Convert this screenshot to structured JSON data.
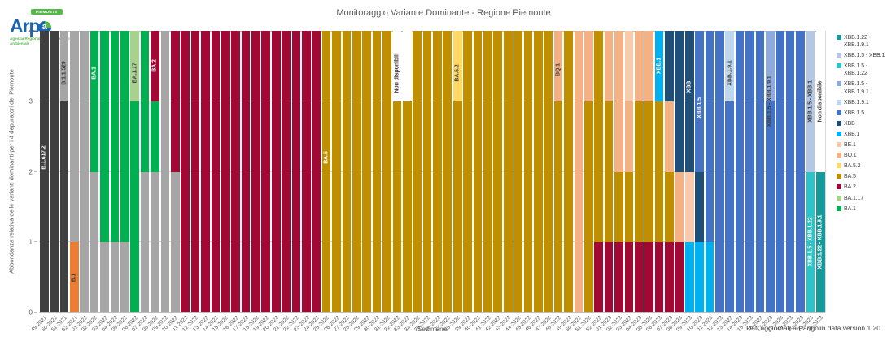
{
  "header": {
    "title": "Monitoraggio Variante Dominante - Regione Piemonte",
    "logo": {
      "badge": "PIEMONTE",
      "name": "Arp",
      "globe_letter": "a",
      "subtitle": "Agenzia Regionale per la Protezione Ambientale"
    }
  },
  "y_axis": {
    "title": "Abbondanza relativa delle varianti dominanti per i 4 depuratori del Piemonte",
    "ticks": [
      0,
      1,
      2,
      3,
      4
    ],
    "max": 4
  },
  "x_axis": {
    "title": "Settimane"
  },
  "footer": {
    "note": "Dati aggiornati a Pangolin data version 1.20"
  },
  "variant_colors": {
    "B.1.617.2": "#3F3F3F",
    "B.1.1.529": "#A6A6A6",
    "B.1": "#ED7D31",
    "BA.1": "#00B050",
    "BA.1.17": "#A9D18E",
    "BA.2": "#A20834",
    "BA.5": "#BF8F00",
    "BA.5.2": "#FFD966",
    "BQ.1": "#F4B183",
    "BE.1": "#F8CBAD",
    "XBB.1": "#00B0F0",
    "XBB": "#1F4E79",
    "XBB.1.5": "#4472C4",
    "XBB.1.9.1": "#BDD7EE",
    "XBB.1.5 - XBB.1.9.1": "#8FAADC",
    "XBB.1.5 - XBB.1.22": "#2BC4C8",
    "XBB.1.5 - XBB.1": "#B4C7E7",
    "XBB.1.22 - XBB.1.9.1": "#17989A",
    "Non disponibile": "#FFFFFF"
  },
  "legend": [
    {
      "label": "XBB.1.22 - XBB.1.9.1",
      "color": "#17989A"
    },
    {
      "label": "XBB.1.5 - XBB.1",
      "color": "#B4C7E7"
    },
    {
      "label": "XBB.1.5 - XBB.1.22",
      "color": "#2BC4C8"
    },
    {
      "label": "XBB.1.5 - XBB.1.9.1",
      "color": "#8FAADC"
    },
    {
      "label": "XBB.1.9.1",
      "color": "#BDD7EE"
    },
    {
      "label": "XBB.1.5",
      "color": "#4472C4"
    },
    {
      "label": "XBB",
      "color": "#1F4E79"
    },
    {
      "label": "XBB.1",
      "color": "#00B0F0"
    },
    {
      "label": "BE.1",
      "color": "#F8CBAD"
    },
    {
      "label": "BQ.1",
      "color": "#F4B183"
    },
    {
      "label": "BA.5.2",
      "color": "#FFD966"
    },
    {
      "label": "BA.5",
      "color": "#BF8F00"
    },
    {
      "label": "BA.2",
      "color": "#A20834"
    },
    {
      "label": "BA.1.17",
      "color": "#A9D18E"
    },
    {
      "label": "BA.1",
      "color": "#00B050"
    }
  ],
  "chart_data": {
    "type": "bar",
    "stacked": true,
    "title": "Monitoraggio Variante Dominante - Regione Piemonte",
    "xlabel": "Settimane",
    "ylabel": "Abbondanza relativa delle varianti dominanti per i 4 depuratori del Piemonte",
    "ylim": [
      0,
      4
    ],
    "grid": true,
    "legend_position": "right",
    "bars": [
      {
        "w": "49-2021",
        "s": [
          [
            "B.1.617.2",
            4
          ]
        ],
        "a": [
          {
            "t": "B.1.617.2",
            "at": 2.2,
            "c": "#FFFFFF"
          }
        ]
      },
      {
        "w": "50-2021",
        "s": [
          [
            "B.1.617.2",
            4
          ]
        ]
      },
      {
        "w": "51-2021",
        "s": [
          [
            "B.1.617.2",
            3
          ],
          [
            "B.1.1.529",
            1
          ]
        ],
        "a": [
          {
            "t": "B.1.1.529",
            "at": 3.4,
            "c": "#404040"
          }
        ]
      },
      {
        "w": "52-2021",
        "s": [
          [
            "B.1",
            1
          ],
          [
            "B.1.1.529",
            3
          ]
        ],
        "a": [
          {
            "t": "B.1",
            "at": 0.5,
            "c": "#404040"
          }
        ]
      },
      {
        "w": "01-2022",
        "s": [
          [
            "B.1.1.529",
            4
          ]
        ]
      },
      {
        "w": "02-2022",
        "s": [
          [
            "B.1.1.529",
            2
          ],
          [
            "BA.1",
            2
          ]
        ],
        "a": [
          {
            "t": "BA.1",
            "at": 3.4,
            "c": "#FFFFFF"
          }
        ]
      },
      {
        "w": "03-2022",
        "s": [
          [
            "B.1.1.529",
            1
          ],
          [
            "BA.1",
            3
          ]
        ]
      },
      {
        "w": "04-2022",
        "s": [
          [
            "B.1.1.529",
            1
          ],
          [
            "BA.1",
            3
          ]
        ]
      },
      {
        "w": "05-2022",
        "s": [
          [
            "B.1.1.529",
            1
          ],
          [
            "BA.1",
            3
          ]
        ]
      },
      {
        "w": "06-2022",
        "s": [
          [
            "BA.1",
            3
          ],
          [
            "BA.1.17",
            1
          ]
        ],
        "a": [
          {
            "t": "BA.1.17",
            "at": 3.4,
            "c": "#404040"
          }
        ]
      },
      {
        "w": "07-2022",
        "s": [
          [
            "B.1.1.529",
            2
          ],
          [
            "BA.1",
            2
          ]
        ]
      },
      {
        "w": "08-2022",
        "s": [
          [
            "B.1.1.529",
            2
          ],
          [
            "BA.1",
            1
          ],
          [
            "BA.2",
            1
          ]
        ],
        "a": [
          {
            "t": "BA.2",
            "at": 3.5,
            "c": "#FFFFFF"
          }
        ]
      },
      {
        "w": "09-2022",
        "s": [
          [
            "B.1.1.529",
            4
          ]
        ]
      },
      {
        "w": "10-2022",
        "s": [
          [
            "B.1.1.529",
            2
          ],
          [
            "BA.2",
            2
          ]
        ]
      },
      {
        "w": "11-2022",
        "s": [
          [
            "BA.2",
            4
          ]
        ]
      },
      {
        "w": "12-2022",
        "s": [
          [
            "BA.2",
            4
          ]
        ]
      },
      {
        "w": "13-2022",
        "s": [
          [
            "BA.2",
            4
          ]
        ]
      },
      {
        "w": "14-2022",
        "s": [
          [
            "BA.2",
            4
          ]
        ]
      },
      {
        "w": "15-2022",
        "s": [
          [
            "BA.2",
            4
          ]
        ]
      },
      {
        "w": "16-2022",
        "s": [
          [
            "BA.2",
            4
          ]
        ]
      },
      {
        "w": "17-2022",
        "s": [
          [
            "BA.2",
            4
          ]
        ]
      },
      {
        "w": "18-2022",
        "s": [
          [
            "BA.2",
            4
          ]
        ]
      },
      {
        "w": "19-2022",
        "s": [
          [
            "BA.2",
            4
          ]
        ]
      },
      {
        "w": "20-2022",
        "s": [
          [
            "BA.2",
            4
          ]
        ]
      },
      {
        "w": "21-2022",
        "s": [
          [
            "BA.2",
            4
          ]
        ]
      },
      {
        "w": "22-2022",
        "s": [
          [
            "BA.2",
            4
          ]
        ]
      },
      {
        "w": "23-2022",
        "s": [
          [
            "BA.2",
            4
          ]
        ]
      },
      {
        "w": "24-2022",
        "s": [
          [
            "BA.2",
            4
          ]
        ]
      },
      {
        "w": "25-2022",
        "s": [
          [
            "BA.5",
            4
          ]
        ],
        "a": [
          {
            "t": "BA.5",
            "at": 2.2,
            "c": "#FFFFFF"
          }
        ]
      },
      {
        "w": "26-2022",
        "s": [
          [
            "BA.5",
            4
          ]
        ]
      },
      {
        "w": "27-2022",
        "s": [
          [
            "BA.5",
            4
          ]
        ]
      },
      {
        "w": "28-2022",
        "s": [
          [
            "BA.5",
            4
          ]
        ]
      },
      {
        "w": "29-2022",
        "s": [
          [
            "BA.5",
            4
          ]
        ]
      },
      {
        "w": "30-2022",
        "s": [
          [
            "BA.5",
            4
          ]
        ]
      },
      {
        "w": "31-2022",
        "s": [
          [
            "BA.5",
            4
          ]
        ]
      },
      {
        "w": "32-2022",
        "s": [
          [
            "BA.5",
            3
          ],
          [
            "Non disponibile",
            1
          ]
        ],
        "a": [
          {
            "t": "Non disponibili",
            "at": 3.4,
            "c": "#404040"
          }
        ]
      },
      {
        "w": "33-2022",
        "s": [
          [
            "BA.5",
            3
          ],
          [
            "Non disponibile",
            1
          ]
        ]
      },
      {
        "w": "34-2022",
        "s": [
          [
            "BA.5",
            4
          ]
        ]
      },
      {
        "w": "35-2022",
        "s": [
          [
            "BA.5",
            4
          ]
        ]
      },
      {
        "w": "36-2022",
        "s": [
          [
            "BA.5",
            4
          ]
        ]
      },
      {
        "w": "37-2022",
        "s": [
          [
            "BA.5",
            4
          ]
        ]
      },
      {
        "w": "38-2022",
        "s": [
          [
            "BA.5",
            3
          ],
          [
            "BA.5.2",
            1
          ]
        ],
        "a": [
          {
            "t": "BA.5.2",
            "at": 3.4,
            "c": "#404040"
          }
        ]
      },
      {
        "w": "39-2022",
        "s": [
          [
            "BA.5",
            4
          ]
        ]
      },
      {
        "w": "40-2022",
        "s": [
          [
            "BA.5",
            4
          ]
        ]
      },
      {
        "w": "41-2022",
        "s": [
          [
            "BA.5",
            4
          ]
        ]
      },
      {
        "w": "42-2022",
        "s": [
          [
            "BA.5",
            4
          ]
        ]
      },
      {
        "w": "43-2022",
        "s": [
          [
            "BA.5",
            4
          ]
        ]
      },
      {
        "w": "44-2022",
        "s": [
          [
            "BA.5",
            4
          ]
        ]
      },
      {
        "w": "45-2022",
        "s": [
          [
            "BA.5",
            4
          ]
        ]
      },
      {
        "w": "46-2022",
        "s": [
          [
            "BA.5",
            4
          ]
        ]
      },
      {
        "w": "47-2022",
        "s": [
          [
            "BA.5",
            4
          ]
        ]
      },
      {
        "w": "48-2022",
        "s": [
          [
            "BA.5",
            3
          ],
          [
            "BQ.1",
            1
          ]
        ],
        "a": [
          {
            "t": "BQ.1",
            "at": 3.45,
            "c": "#404040"
          }
        ]
      },
      {
        "w": "49-2022",
        "s": [
          [
            "BA.5",
            4
          ]
        ]
      },
      {
        "w": "50-2022",
        "s": [
          [
            "BQ.1",
            4
          ]
        ]
      },
      {
        "w": "51-2022",
        "s": [
          [
            "BA.5",
            3
          ],
          [
            "BQ.1",
            1
          ]
        ]
      },
      {
        "w": "52-2022",
        "s": [
          [
            "BA.2",
            1
          ],
          [
            "BA.5",
            3
          ]
        ]
      },
      {
        "w": "01-2023",
        "s": [
          [
            "BA.2",
            1
          ],
          [
            "BA.5",
            2
          ],
          [
            "BQ.1",
            1
          ]
        ]
      },
      {
        "w": "02-2023",
        "s": [
          [
            "BA.2",
            1
          ],
          [
            "BA.5",
            1
          ],
          [
            "BQ.1",
            2
          ]
        ]
      },
      {
        "w": "03-2023",
        "s": [
          [
            "BA.2",
            1
          ],
          [
            "BA.5",
            1
          ],
          [
            "BQ.1",
            1
          ],
          [
            "BE.1",
            1
          ]
        ]
      },
      {
        "w": "04-2023",
        "s": [
          [
            "BA.2",
            1
          ],
          [
            "BA.5",
            2
          ],
          [
            "BQ.1",
            1
          ]
        ]
      },
      {
        "w": "05-2023",
        "s": [
          [
            "BA.2",
            1
          ],
          [
            "BA.5",
            2
          ],
          [
            "BQ.1",
            1
          ]
        ]
      },
      {
        "w": "06-2023",
        "s": [
          [
            "BA.2",
            1
          ],
          [
            "BA.5",
            2
          ],
          [
            "XBB.1",
            1
          ]
        ],
        "a": [
          {
            "t": "XBB.1",
            "at": 3.5,
            "c": "#FFFFFF"
          }
        ]
      },
      {
        "w": "07-2023",
        "s": [
          [
            "BA.2",
            1
          ],
          [
            "BA.5",
            1
          ],
          [
            "BQ.1",
            1
          ],
          [
            "XBB",
            1
          ]
        ]
      },
      {
        "w": "08-2023",
        "s": [
          [
            "BA.2",
            1
          ],
          [
            "BQ.1",
            1
          ],
          [
            "XBB",
            2
          ]
        ]
      },
      {
        "w": "09-2023",
        "s": [
          [
            "XBB.1",
            1
          ],
          [
            "BE.1",
            1
          ],
          [
            "XBB",
            2
          ]
        ],
        "a": [
          {
            "t": "XBB",
            "at": 3.2,
            "c": "#FFFFFF"
          }
        ]
      },
      {
        "w": "10-2023",
        "s": [
          [
            "XBB.1",
            1
          ],
          [
            "XBB",
            1
          ],
          [
            "XBB.1.5",
            2
          ]
        ],
        "a": [
          {
            "t": "XBB.1.5",
            "at": 2.9,
            "c": "#FFFFFF"
          }
        ]
      },
      {
        "w": "11-2023",
        "s": [
          [
            "XBB.1",
            1
          ],
          [
            "XBB.1.5",
            3
          ]
        ]
      },
      {
        "w": "12-2023",
        "s": [
          [
            "XBB.1.5",
            4
          ]
        ]
      },
      {
        "w": "13-2023",
        "s": [
          [
            "XBB.1.5",
            3
          ],
          [
            "XBB.1.9.1",
            1
          ]
        ],
        "a": [
          {
            "t": "XBB.1.9.1",
            "at": 3.4,
            "c": "#404040"
          }
        ]
      },
      {
        "w": "14-2023",
        "s": [
          [
            "XBB.1.5",
            4
          ]
        ]
      },
      {
        "w": "15-2023",
        "s": [
          [
            "XBB.1.5",
            4
          ]
        ]
      },
      {
        "w": "16-2023",
        "s": [
          [
            "XBB.1.5",
            4
          ]
        ]
      },
      {
        "w": "17-2023",
        "s": [
          [
            "XBB.1.5",
            3
          ],
          [
            "XBB.1.5 - XBB.1.9.1",
            1
          ]
        ],
        "a": [
          {
            "t": "XBB.1.5 - XBB.1.9.1",
            "at": 3.0,
            "c": "#404040"
          }
        ]
      },
      {
        "w": "18-2023",
        "s": [
          [
            "XBB.1.5",
            4
          ]
        ]
      },
      {
        "w": "19-2023",
        "s": [
          [
            "XBB.1.5",
            4
          ]
        ]
      },
      {
        "w": "20-2023",
        "s": [
          [
            "XBB.1.5",
            4
          ]
        ]
      },
      {
        "w": "21-2023",
        "s": [
          [
            "XBB.1.5 - XBB.1.22",
            2
          ],
          [
            "XBB.1.5 - XBB.1",
            2
          ]
        ],
        "a": [
          {
            "t": "XBB.1.5 - XBB.1",
            "at": 3.0,
            "c": "#404040"
          },
          {
            "t": "XBB.1.5 - XBB.1.22",
            "at": 1.0,
            "c": "#FFFFFF"
          }
        ]
      },
      {
        "w": "22-2023",
        "s": [
          [
            "XBB.1.22 - XBB.1.9.1",
            2
          ],
          [
            "Non disponibile",
            2
          ]
        ],
        "a": [
          {
            "t": "Non disponibile",
            "at": 3.0,
            "c": "#404040"
          },
          {
            "t": "XBB.1.22 - XBB.1.9.1",
            "at": 1.0,
            "c": "#FFFFFF"
          }
        ]
      }
    ]
  }
}
